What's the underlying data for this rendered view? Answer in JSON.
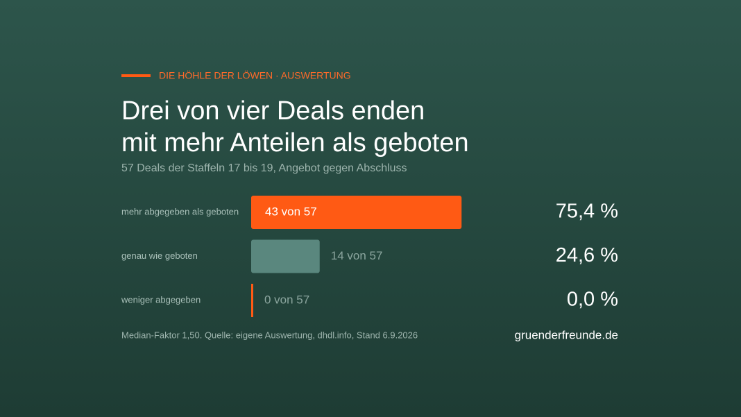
{
  "chart_data": {
    "type": "bar",
    "orientation": "horizontal",
    "kicker": "DIE HÖHLE DER LÖWEN · AUSWERTUNG",
    "title": [
      "Drei von vier Deals enden",
      "mit mehr Anteilen als geboten"
    ],
    "subtitle": "57 Deals der Staffeln 17 bis 19, Angebot gegen Abschluss",
    "categories": [
      "mehr abgegeben als geboten",
      "genau wie geboten",
      "weniger abgegeben"
    ],
    "values": [
      43,
      14,
      0
    ],
    "value_labels": [
      "43 von 57",
      "14 von 57",
      "0 von 57"
    ],
    "colors": [
      "#ff5a14",
      "#5a877e",
      "#ff5a14"
    ],
    "share_values": [
      75.4,
      24.6,
      0.0
    ],
    "share_labels": [
      "75,4 %",
      "24,6 %",
      "0,0 %"
    ],
    "xlim": [
      0,
      57
    ],
    "note": "Median-Faktor 1,50. Quelle: eigene Auswertung, dhdl.info, Stand 6.9.2026",
    "brand": "gruenderfreunde.de"
  }
}
